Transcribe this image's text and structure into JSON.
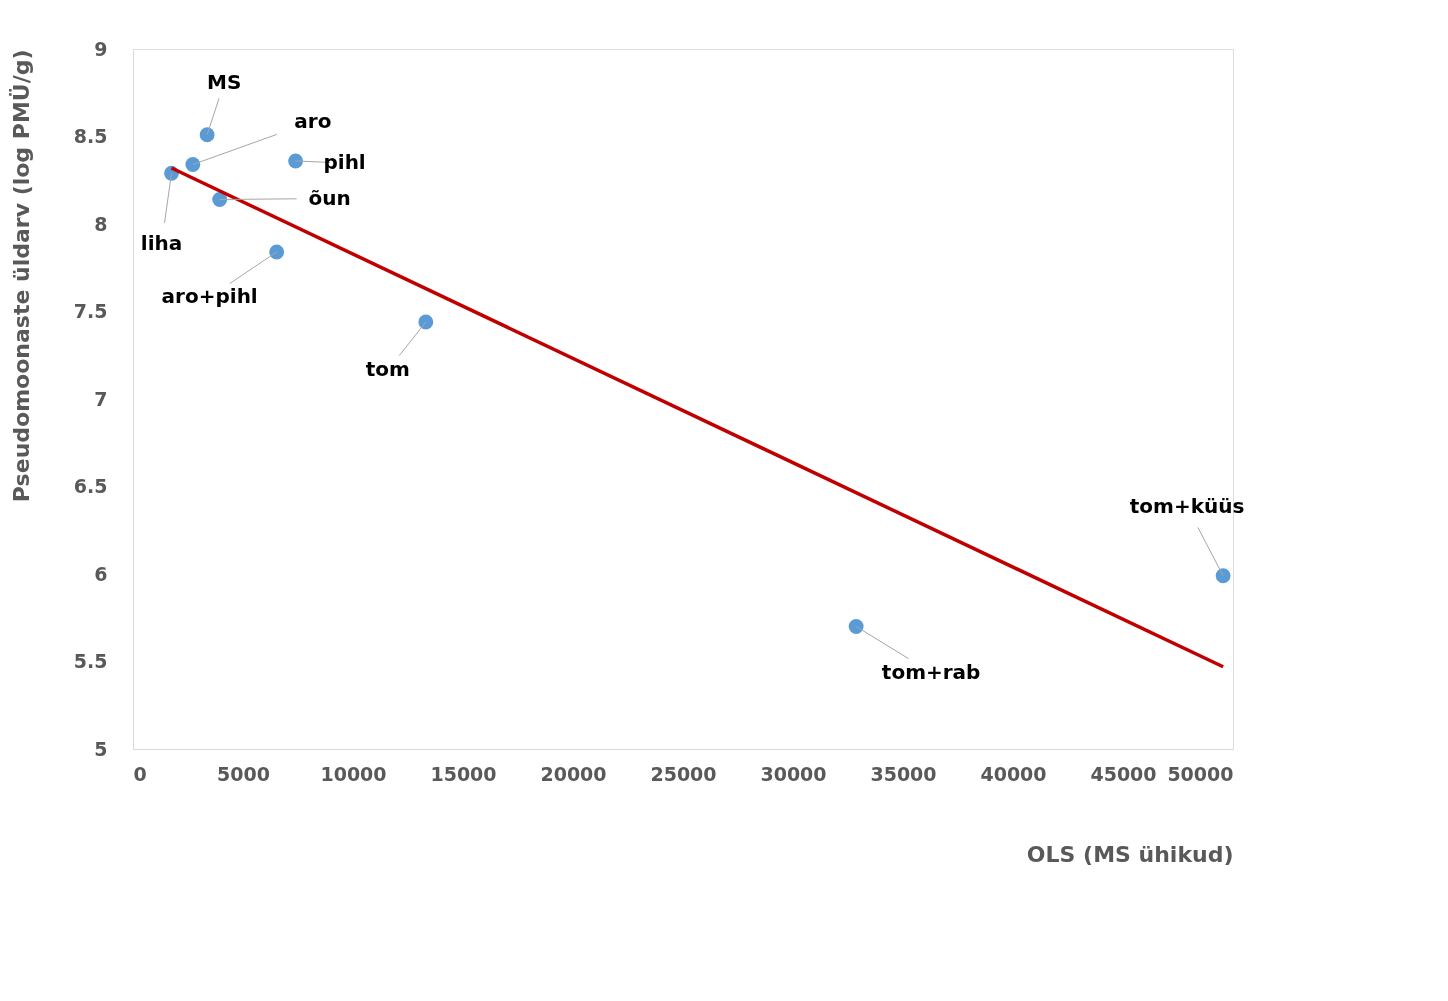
{
  "chart_data": {
    "type": "scatter",
    "xlabel": "OLS (MS ühikud)",
    "ylabel": "Pseudomoonaste üldarv (log PMÜ/g)",
    "xlim": [
      0,
      50000
    ],
    "xticks": [
      0,
      5000,
      10000,
      15000,
      20000,
      25000,
      30000,
      35000,
      40000,
      45000,
      50000
    ],
    "ylim": [
      5,
      9
    ],
    "yticks": [
      5,
      5.5,
      6,
      6.5,
      7,
      7.5,
      8,
      8.5,
      9
    ],
    "grid": false,
    "series": [
      {
        "color": "#5b9bd5",
        "marker": "circle",
        "x": [
          1750,
          3370,
          2720,
          7390,
          3940,
          6530,
          13310,
          32870,
          49550
        ],
        "values": [
          8.29,
          8.51,
          8.34,
          8.36,
          8.14,
          7.84,
          7.44,
          5.7,
          5.99
        ]
      },
      {
        "type": "line",
        "marker": "none",
        "color": "#c00000",
        "x": [
          1750,
          49550
        ],
        "values": [
          8.32,
          5.47
        ]
      }
    ],
    "annotations": [
      {
        "text": "MS",
        "x": 3370,
        "y": 8.51
      },
      {
        "text": "aro",
        "x": 2720,
        "y": 8.34
      },
      {
        "text": "pihl",
        "x": 7390,
        "y": 8.36
      },
      {
        "text": "õun",
        "x": 3940,
        "y": 8.14
      },
      {
        "text": "liha",
        "x": 1750,
        "y": 8.29
      },
      {
        "text": "aro+pihl",
        "x": 6530,
        "y": 7.84
      },
      {
        "text": "tom",
        "x": 13310,
        "y": 7.44
      },
      {
        "text": "tom+rab",
        "x": 32870,
        "y": 5.7
      },
      {
        "text": "tom+küüs",
        "x": 49550,
        "y": 5.99
      }
    ]
  }
}
